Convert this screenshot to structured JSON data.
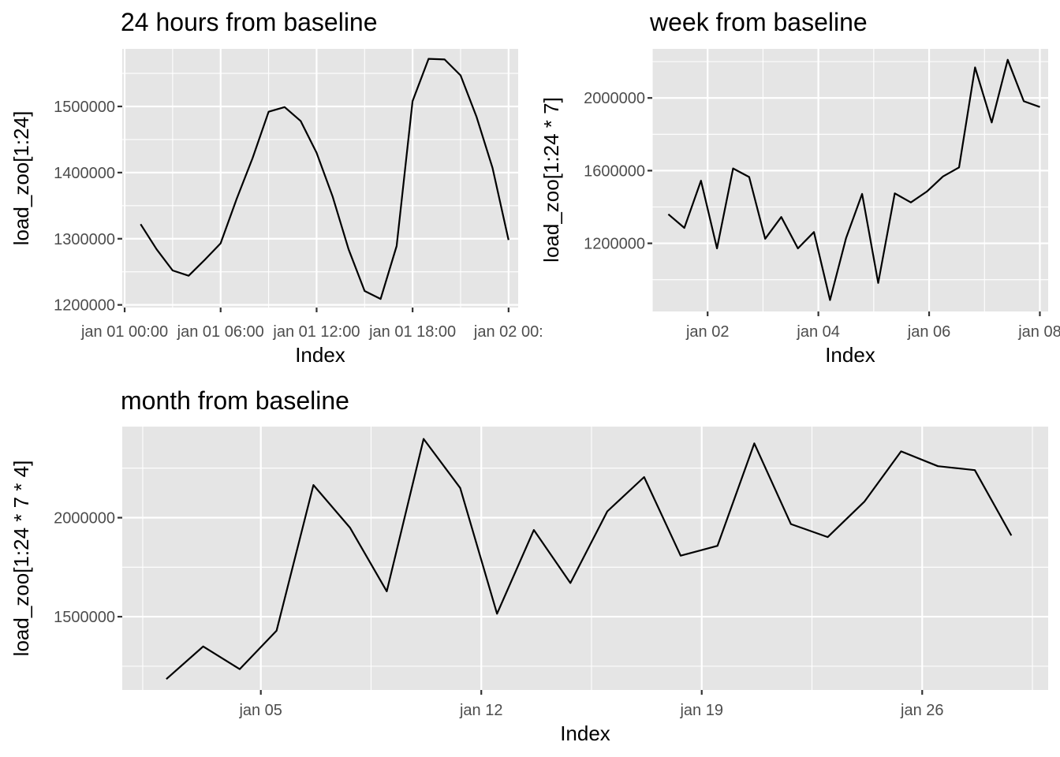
{
  "colors": {
    "panel_background": "#e5e5e5",
    "grid": "#ffffff",
    "line": "#000000",
    "tick_text": "#4d4d4d"
  },
  "chart_data": [
    {
      "type": "line",
      "title": "24 hours from baseline",
      "xlabel": "Index",
      "ylabel": "load_zoo[1:24]",
      "x_unit": "hours",
      "xlim": [
        -0.15,
        24.6
      ],
      "ylim": [
        1196000,
        1587000
      ],
      "grid": true,
      "x_major_ticks": [
        {
          "at": 0,
          "label": "jan 01 00:00"
        },
        {
          "at": 6,
          "label": "jan 01 06:00"
        },
        {
          "at": 12,
          "label": "jan 01 12:00"
        },
        {
          "at": 18,
          "label": "jan 01 18:00"
        },
        {
          "at": 24,
          "label": "jan 02 00:"
        }
      ],
      "x_minor_ticks": [
        3,
        9,
        15,
        21
      ],
      "y_major_ticks": [
        {
          "at": 1200000,
          "label": "1200000"
        },
        {
          "at": 1300000,
          "label": "1300000"
        },
        {
          "at": 1400000,
          "label": "1400000"
        },
        {
          "at": 1500000,
          "label": "1500000"
        }
      ],
      "y_minor_ticks": [
        1250000,
        1350000,
        1450000,
        1550000
      ],
      "series": [
        {
          "x": [
            1,
            2,
            3,
            4,
            5,
            6,
            7,
            8,
            9,
            10,
            11,
            12,
            13,
            14,
            15,
            16,
            17,
            18,
            19,
            20,
            21,
            22,
            23,
            24
          ],
          "values": [
            1322000,
            1284000,
            1252000,
            1244000,
            1268000,
            1293000,
            1360000,
            1422000,
            1492000,
            1499000,
            1478000,
            1430000,
            1364000,
            1284000,
            1221000,
            1209000,
            1289000,
            1508000,
            1572000,
            1571000,
            1547000,
            1484000,
            1407000,
            1298000
          ]
        }
      ]
    },
    {
      "type": "line",
      "title": "week from baseline",
      "xlabel": "Index",
      "ylabel": "load_zoo[1:24 * 7]",
      "x_unit": "days",
      "xlim": [
        1.0,
        8.15
      ],
      "ylim": [
        825000,
        2270000
      ],
      "grid": true,
      "x_major_ticks": [
        {
          "at": 2,
          "label": "jan 02"
        },
        {
          "at": 4,
          "label": "jan 04"
        },
        {
          "at": 6,
          "label": "jan 06"
        },
        {
          "at": 8,
          "label": "jan 08"
        }
      ],
      "x_minor_ticks": [
        1,
        3,
        5,
        7
      ],
      "y_major_ticks": [
        {
          "at": 1200000,
          "label": "1200000"
        },
        {
          "at": 1600000,
          "label": "1600000"
        },
        {
          "at": 2000000,
          "label": "2000000"
        }
      ],
      "y_minor_ticks": [
        1000000,
        1400000,
        1800000,
        2200000
      ],
      "series": [
        {
          "x": [
            1.29,
            1.58,
            1.88,
            2.17,
            2.46,
            2.75,
            3.04,
            3.33,
            3.63,
            3.92,
            4.21,
            4.5,
            4.79,
            5.08,
            5.38,
            5.67,
            5.96,
            6.25,
            6.54,
            6.83,
            7.13,
            7.42,
            7.71,
            8.0
          ],
          "values": [
            1360000,
            1285000,
            1545000,
            1172000,
            1612000,
            1565000,
            1225000,
            1345000,
            1172000,
            1262000,
            888000,
            1228000,
            1472000,
            982000,
            1475000,
            1425000,
            1485000,
            1568000,
            1618000,
            2168000,
            1865000,
            2210000,
            1982000,
            1950000
          ]
        }
      ]
    },
    {
      "type": "line",
      "title": "month from baseline",
      "xlabel": "Index",
      "ylabel": "load_zoo[1:24 * 7 * 4]",
      "x_unit": "days",
      "xlim": [
        0.6,
        30.0
      ],
      "ylim": [
        1130000,
        2460000
      ],
      "grid": true,
      "x_major_ticks": [
        {
          "at": 5,
          "label": "jan 05"
        },
        {
          "at": 12,
          "label": "jan 12"
        },
        {
          "at": 19,
          "label": "jan 19"
        },
        {
          "at": 26,
          "label": "jan 26"
        }
      ],
      "x_minor_ticks": [
        1.25,
        8.5,
        15.5,
        22.5,
        29.5
      ],
      "y_major_ticks": [
        {
          "at": 1500000,
          "label": "1500000"
        },
        {
          "at": 2000000,
          "label": "2000000"
        }
      ],
      "y_minor_ticks": [
        1250000,
        1750000,
        2250000
      ],
      "series": [
        {
          "x": [
            2,
            3.17,
            4.33,
            5.5,
            6.67,
            7.83,
            9,
            10.17,
            11.33,
            12.5,
            13.67,
            14.83,
            16,
            17.17,
            18.33,
            19.5,
            20.67,
            21.83,
            23,
            24.17,
            25.33,
            26.5,
            27.67,
            28.83
          ],
          "values": [
            1185000,
            1350000,
            1235000,
            1430000,
            2165000,
            1950000,
            1628000,
            2398000,
            2150000,
            1515000,
            1938000,
            1670000,
            2032000,
            2205000,
            1808000,
            1858000,
            2375000,
            1968000,
            1902000,
            2082000,
            2335000,
            2260000,
            2240000,
            1910000
          ]
        }
      ]
    }
  ]
}
